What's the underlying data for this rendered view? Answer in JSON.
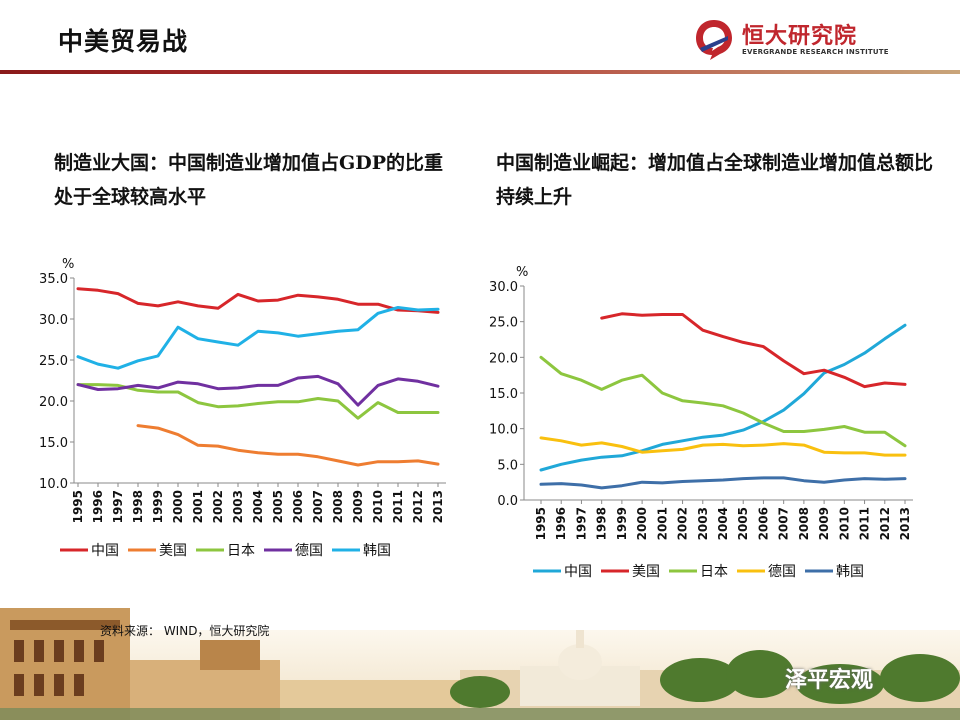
{
  "header": {
    "title": "中美贸易战"
  },
  "logo": {
    "name": "恒大研究院",
    "subtitle": "EVERGRANDE RESEARCH INSTITUTE"
  },
  "left_heading": "制造业大国：中国制造业增加值占GDP的比重处于全球较高水平",
  "right_heading": "中国制造业崛起：增加值占全球制造业增加值总额比持续上升",
  "source": "资料来源： WIND，恒大研究院",
  "watermark": "泽平宏观",
  "colors": {
    "china_left": "#d7262a",
    "usa_left": "#ee7d31",
    "japan": "#8dc63f",
    "germany_left": "#7030a0",
    "korea_left": "#20b1e6",
    "china_right": "#20a8d8",
    "usa_right": "#d7262a",
    "germany_right": "#f9c00f",
    "korea_right": "#3e6fa8"
  },
  "chart_data": [
    {
      "type": "line",
      "unit": "%",
      "x": [
        "1995",
        "1996",
        "1997",
        "1998",
        "1999",
        "2000",
        "2001",
        "2002",
        "2003",
        "2004",
        "2005",
        "2006",
        "2007",
        "2008",
        "2009",
        "2010",
        "2011",
        "2012",
        "2013"
      ],
      "ylim": [
        10,
        35
      ],
      "yticks": [
        "10.0",
        "15.0",
        "20.0",
        "25.0",
        "30.0",
        "35.0"
      ],
      "grid": false,
      "legend": "bottom",
      "series": [
        {
          "name": "中国",
          "color": "#d7262a",
          "values": [
            33.7,
            33.5,
            33.1,
            31.9,
            31.6,
            32.1,
            31.6,
            31.3,
            33.0,
            32.2,
            32.3,
            32.9,
            32.7,
            32.4,
            31.8,
            31.8,
            31.1,
            31.0,
            30.8
          ]
        },
        {
          "name": "美国",
          "color": "#ee7d31",
          "values": [
            null,
            null,
            null,
            17.0,
            16.7,
            15.9,
            14.6,
            14.5,
            14.0,
            13.7,
            13.5,
            13.5,
            13.2,
            12.7,
            12.2,
            12.6,
            12.6,
            12.7,
            12.3
          ]
        },
        {
          "name": "日本",
          "color": "#8dc63f",
          "values": [
            22.0,
            22.0,
            21.9,
            21.3,
            21.1,
            21.1,
            19.8,
            19.3,
            19.4,
            19.7,
            19.9,
            19.9,
            20.3,
            20.0,
            17.9,
            19.8,
            18.6,
            18.6,
            18.6
          ]
        },
        {
          "name": "德国",
          "color": "#7030a0",
          "values": [
            22.0,
            21.4,
            21.5,
            21.9,
            21.6,
            22.3,
            22.1,
            21.5,
            21.6,
            21.9,
            21.9,
            22.8,
            23.0,
            22.1,
            19.5,
            21.9,
            22.7,
            22.4,
            21.8
          ]
        },
        {
          "name": "韩国",
          "color": "#20b1e6",
          "values": [
            25.4,
            24.5,
            24.0,
            24.9,
            25.5,
            29.0,
            27.6,
            27.2,
            26.8,
            28.5,
            28.3,
            27.9,
            28.2,
            28.5,
            28.7,
            30.7,
            31.4,
            31.1,
            31.2
          ]
        }
      ]
    },
    {
      "type": "line",
      "unit": "%",
      "x": [
        "1995",
        "1996",
        "1997",
        "1998",
        "1999",
        "2000",
        "2001",
        "2002",
        "2003",
        "2004",
        "2005",
        "2006",
        "2007",
        "2008",
        "2009",
        "2010",
        "2011",
        "2012",
        "2013"
      ],
      "ylim": [
        0,
        30
      ],
      "yticks": [
        "0.0",
        "5.0",
        "10.0",
        "15.0",
        "20.0",
        "25.0",
        "30.0"
      ],
      "grid": false,
      "legend": "bottom",
      "series": [
        {
          "name": "中国",
          "color": "#20a8d8",
          "values": [
            4.2,
            5.0,
            5.6,
            6.0,
            6.2,
            6.9,
            7.8,
            8.3,
            8.8,
            9.1,
            9.8,
            11.0,
            12.6,
            14.9,
            17.8,
            19.0,
            20.6,
            22.6,
            24.5
          ]
        },
        {
          "name": "美国",
          "color": "#d7262a",
          "values": [
            null,
            null,
            null,
            25.5,
            26.1,
            25.9,
            26.0,
            26.0,
            23.8,
            22.9,
            22.1,
            21.5,
            19.5,
            17.7,
            18.2,
            17.2,
            15.9,
            16.4,
            16.2
          ]
        },
        {
          "name": "日本",
          "color": "#8dc63f",
          "values": [
            20.0,
            17.7,
            16.8,
            15.5,
            16.8,
            17.5,
            15.0,
            13.9,
            13.6,
            13.2,
            12.2,
            10.8,
            9.6,
            9.6,
            9.9,
            10.3,
            9.5,
            9.5,
            7.6
          ]
        },
        {
          "name": "德国",
          "color": "#f9c00f",
          "values": [
            8.7,
            8.3,
            7.7,
            8.0,
            7.5,
            6.7,
            6.9,
            7.1,
            7.7,
            7.8,
            7.6,
            7.7,
            7.9,
            7.7,
            6.7,
            6.6,
            6.6,
            6.3,
            6.3
          ]
        },
        {
          "name": "韩国",
          "color": "#3e6fa8",
          "values": [
            2.2,
            2.3,
            2.1,
            1.7,
            2.0,
            2.5,
            2.4,
            2.6,
            2.7,
            2.8,
            3.0,
            3.1,
            3.1,
            2.7,
            2.5,
            2.8,
            3.0,
            2.9,
            3.0
          ]
        }
      ]
    }
  ]
}
